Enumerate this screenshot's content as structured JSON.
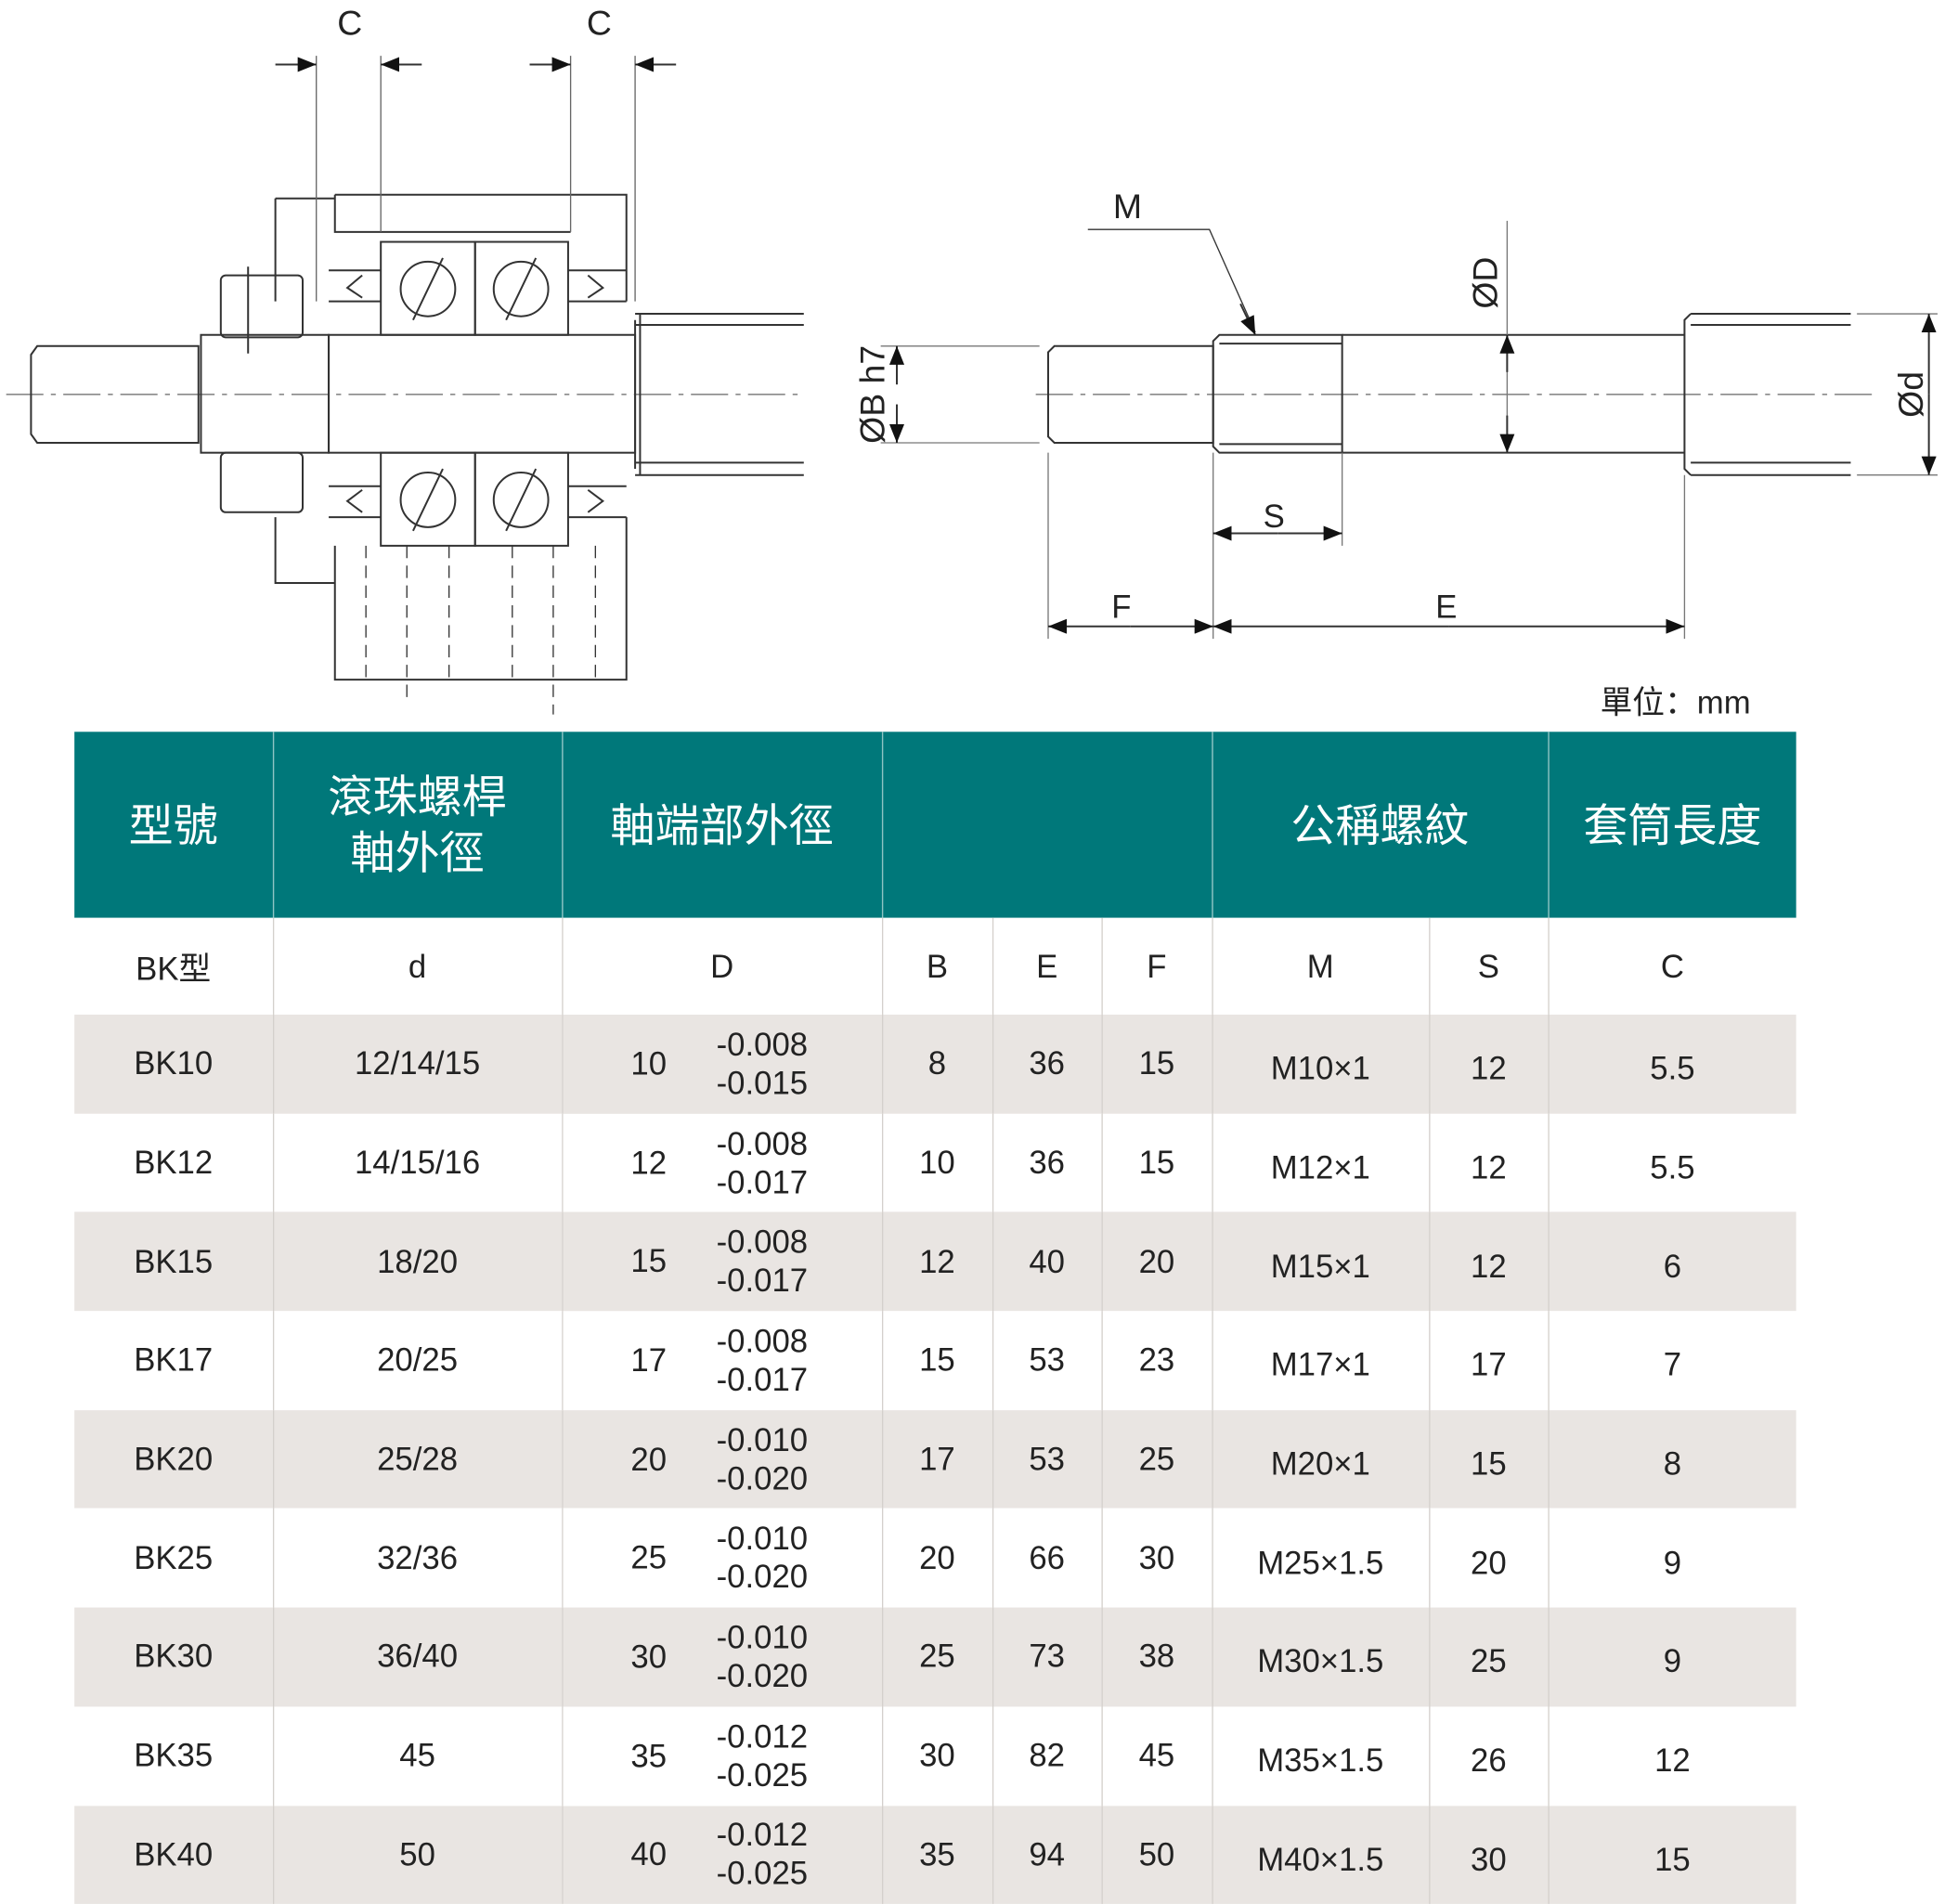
{
  "drawing": {
    "left_labels": {
      "c1": "C",
      "c2": "C"
    },
    "right_labels": {
      "M": "M",
      "D": "ØD",
      "B": "ØB h7",
      "d": "Ød",
      "S": "S",
      "F": "F",
      "E": "E"
    }
  },
  "unit_label": "單位：mm",
  "colors": {
    "header_bg": "#00787a",
    "row_alt": "#e9e5e2"
  },
  "table": {
    "headers": [
      "型號",
      "滾珠螺桿\n軸外徑",
      "軸端部外徑",
      "",
      "公稱螺紋",
      "套筒長度"
    ],
    "subheaders": [
      "BK型",
      "d",
      "D",
      "B",
      "E",
      "F",
      "M",
      "S",
      "C"
    ],
    "rows": [
      {
        "model": "BK10",
        "d": "12/14/15",
        "D": "10",
        "tol_upper": "-0.008",
        "tol_lower": "-0.015",
        "B": "8",
        "E": "36",
        "F": "15",
        "M": "M10×1",
        "S": "12",
        "C": "5.5"
      },
      {
        "model": "BK12",
        "d": "14/15/16",
        "D": "12",
        "tol_upper": "-0.008",
        "tol_lower": "-0.017",
        "B": "10",
        "E": "36",
        "F": "15",
        "M": "M12×1",
        "S": "12",
        "C": "5.5"
      },
      {
        "model": "BK15",
        "d": "18/20",
        "D": "15",
        "tol_upper": "-0.008",
        "tol_lower": "-0.017",
        "B": "12",
        "E": "40",
        "F": "20",
        "M": "M15×1",
        "S": "12",
        "C": "6"
      },
      {
        "model": "BK17",
        "d": "20/25",
        "D": "17",
        "tol_upper": "-0.008",
        "tol_lower": "-0.017",
        "B": "15",
        "E": "53",
        "F": "23",
        "M": "M17×1",
        "S": "17",
        "C": "7"
      },
      {
        "model": "BK20",
        "d": "25/28",
        "D": "20",
        "tol_upper": "-0.010",
        "tol_lower": "-0.020",
        "B": "17",
        "E": "53",
        "F": "25",
        "M": "M20×1",
        "S": "15",
        "C": "8"
      },
      {
        "model": "BK25",
        "d": "32/36",
        "D": "25",
        "tol_upper": "-0.010",
        "tol_lower": "-0.020",
        "B": "20",
        "E": "66",
        "F": "30",
        "M": "M25×1.5",
        "S": "20",
        "C": "9"
      },
      {
        "model": "BK30",
        "d": "36/40",
        "D": "30",
        "tol_upper": "-0.010",
        "tol_lower": "-0.020",
        "B": "25",
        "E": "73",
        "F": "38",
        "M": "M30×1.5",
        "S": "25",
        "C": "9"
      },
      {
        "model": "BK35",
        "d": "45",
        "D": "35",
        "tol_upper": "-0.012",
        "tol_lower": "-0.025",
        "B": "30",
        "E": "82",
        "F": "45",
        "M": "M35×1.5",
        "S": "26",
        "C": "12"
      },
      {
        "model": "BK40",
        "d": "50",
        "D": "40",
        "tol_upper": "-0.012",
        "tol_lower": "-0.025",
        "B": "35",
        "E": "94",
        "F": "50",
        "M": "M40×1.5",
        "S": "30",
        "C": "15"
      }
    ]
  }
}
